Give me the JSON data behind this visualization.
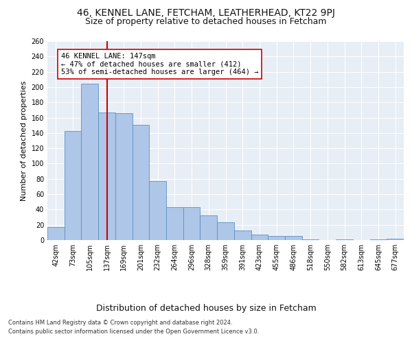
{
  "title": "46, KENNEL LANE, FETCHAM, LEATHERHEAD, KT22 9PJ",
  "subtitle": "Size of property relative to detached houses in Fetcham",
  "xlabel": "Distribution of detached houses by size in Fetcham",
  "ylabel": "Number of detached properties",
  "categories": [
    "42sqm",
    "73sqm",
    "105sqm",
    "137sqm",
    "169sqm",
    "201sqm",
    "232sqm",
    "264sqm",
    "296sqm",
    "328sqm",
    "359sqm",
    "391sqm",
    "423sqm",
    "455sqm",
    "486sqm",
    "518sqm",
    "550sqm",
    "582sqm",
    "613sqm",
    "645sqm",
    "677sqm"
  ],
  "values": [
    17,
    143,
    204,
    167,
    166,
    151,
    77,
    43,
    43,
    32,
    23,
    13,
    7,
    5,
    5,
    1,
    0,
    1,
    0,
    1,
    2
  ],
  "bar_color": "#aec6e8",
  "bar_edgecolor": "#5a8fc2",
  "vline_x": 3,
  "vline_color": "#cc0000",
  "annotation_text": "46 KENNEL LANE: 147sqm\n← 47% of detached houses are smaller (412)\n53% of semi-detached houses are larger (464) →",
  "annotation_box_edgecolor": "#cc0000",
  "annotation_box_facecolor": "white",
  "ylim": [
    0,
    260
  ],
  "yticks": [
    0,
    20,
    40,
    60,
    80,
    100,
    120,
    140,
    160,
    180,
    200,
    220,
    240,
    260
  ],
  "footer_line1": "Contains HM Land Registry data © Crown copyright and database right 2024.",
  "footer_line2": "Contains public sector information licensed under the Open Government Licence v3.0.",
  "bg_color": "#e8eef5",
  "fig_bg_color": "#ffffff",
  "title_fontsize": 10,
  "subtitle_fontsize": 9,
  "tick_fontsize": 7,
  "ylabel_fontsize": 8,
  "xlabel_fontsize": 9,
  "footer_fontsize": 6,
  "annotation_fontsize": 7.5
}
